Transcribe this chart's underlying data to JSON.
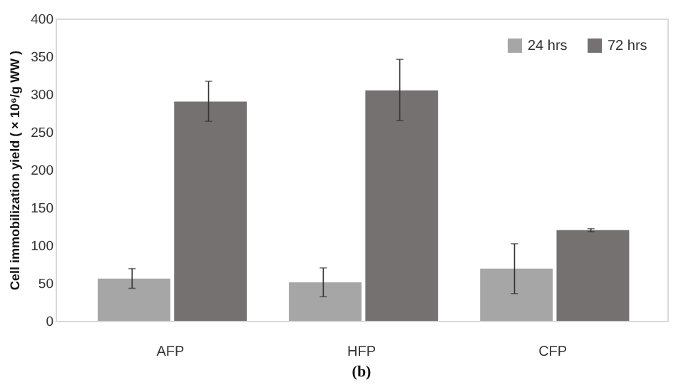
{
  "chart_data": {
    "type": "bar",
    "ylabel": "Cell immobilization yield ( × 10⁶/g WW )",
    "categories": [
      "AFP",
      "HFP",
      "CFP"
    ],
    "series": [
      {
        "name": "24 hrs",
        "color": "#a6a6a6",
        "values": [
          56,
          51,
          69
        ],
        "errors": [
          [
            43,
            69
          ],
          [
            32,
            70
          ],
          [
            36,
            102
          ]
        ]
      },
      {
        "name": "72 hrs",
        "color": "#767171",
        "values": [
          290,
          305,
          120
        ],
        "errors": [
          [
            264,
            317
          ],
          [
            265,
            346
          ],
          [
            118,
            122
          ]
        ]
      }
    ],
    "ylim": [
      0,
      400
    ],
    "yticks": [
      0,
      50,
      100,
      150,
      200,
      250,
      300,
      350,
      400
    ],
    "grid": false,
    "legend": "top right",
    "annotations": [
      "(b)"
    ]
  }
}
